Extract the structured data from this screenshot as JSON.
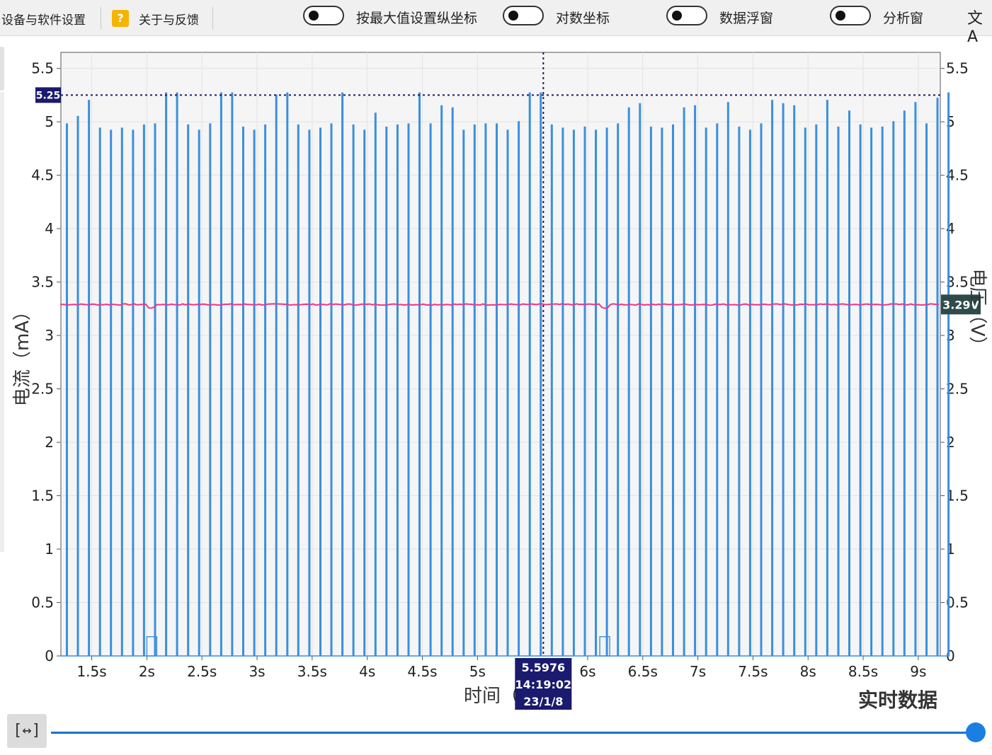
{
  "menu": {
    "device_settings": "设备与软件设置",
    "help_icon": "?",
    "about_feedback": "关于与反馈"
  },
  "toggles": [
    {
      "label": "按最大值设置纵坐标",
      "on": false
    },
    {
      "label": "对数坐标",
      "on": false
    },
    {
      "label": "数据浮窗",
      "on": false
    },
    {
      "label": "分析窗",
      "on": false
    }
  ],
  "language_icon": "文A",
  "fit_button": "[↔]",
  "realtime_label": "实时数据",
  "slider": {
    "position_fraction": 1.0
  },
  "colors": {
    "current": "#3a8fde",
    "voltage": "#e8388a",
    "cursor": "#1a1a6e",
    "voltage_badge": "#2e4a4a"
  },
  "chart_data": {
    "type": "line",
    "xlabel": "时间（秒）",
    "ylabel_left": "电流（mA）",
    "ylabel_right": "电压（V）",
    "xlim": [
      1.22,
      9.2
    ],
    "ylim": [
      0,
      5.65
    ],
    "yticks": [
      "0",
      "0.5",
      "1",
      "1.5",
      "2",
      "2.5",
      "3",
      "3.5",
      "4",
      "4.5",
      "5",
      "5.5"
    ],
    "xticks": [
      "1.5s",
      "2s",
      "2.5s",
      "3s",
      "3.5s",
      "4s",
      "4.5s",
      "5s",
      "6s",
      "6.5s",
      "7s",
      "7.5s",
      "8s",
      "8.5s",
      "9s"
    ],
    "cursor": {
      "x": 5.5976,
      "time_label": "5.5976",
      "clock_label": "14:19:02",
      "date_label": "23/1/8"
    },
    "max_line": {
      "value": 5.25,
      "label": "5.25"
    },
    "voltage_badge": "3.29V",
    "series": [
      {
        "role": "current",
        "pulse_period_s": 0.1,
        "pulse_width_s": 0.009,
        "baseline": 0.0,
        "peaks": [
          4.98,
          5.05,
          5.2,
          4.94,
          4.92,
          4.94,
          4.92,
          4.97,
          4.98,
          5.27,
          5.27,
          4.97,
          4.92,
          4.98,
          5.27,
          5.27,
          4.95,
          4.92,
          4.97,
          5.25,
          5.27,
          4.97,
          4.92,
          4.94,
          4.98,
          5.27,
          4.97,
          4.92,
          5.08,
          4.95,
          4.97,
          4.98,
          5.27,
          4.98,
          5.15,
          5.13,
          4.92,
          4.97,
          4.98,
          4.98,
          4.92,
          5.0,
          5.27,
          5.27,
          4.97,
          4.94,
          4.92,
          4.95,
          4.92,
          4.94,
          4.98,
          5.13,
          5.17,
          4.95,
          4.94,
          4.97,
          5.13,
          5.15,
          4.94,
          4.98,
          5.18,
          4.95,
          4.92,
          4.98,
          5.2,
          5.17,
          5.15,
          4.94,
          4.97,
          5.2,
          4.95,
          5.1,
          4.97,
          4.94,
          4.95,
          5.0,
          5.1,
          5.18,
          4.98,
          5.22,
          5.27
        ],
        "low_dips": [
          {
            "x_start": 2.0,
            "x_end": 2.09,
            "value": 0.18
          },
          {
            "x_start": 6.11,
            "x_end": 6.2,
            "value": 0.18
          }
        ]
      },
      {
        "role": "voltage",
        "value": 3.29,
        "dips": [
          {
            "x_start": 2.0,
            "x_end": 2.09,
            "value": 3.26
          },
          {
            "x_start": 6.11,
            "x_end": 6.2,
            "value": 3.26
          }
        ]
      }
    ]
  }
}
